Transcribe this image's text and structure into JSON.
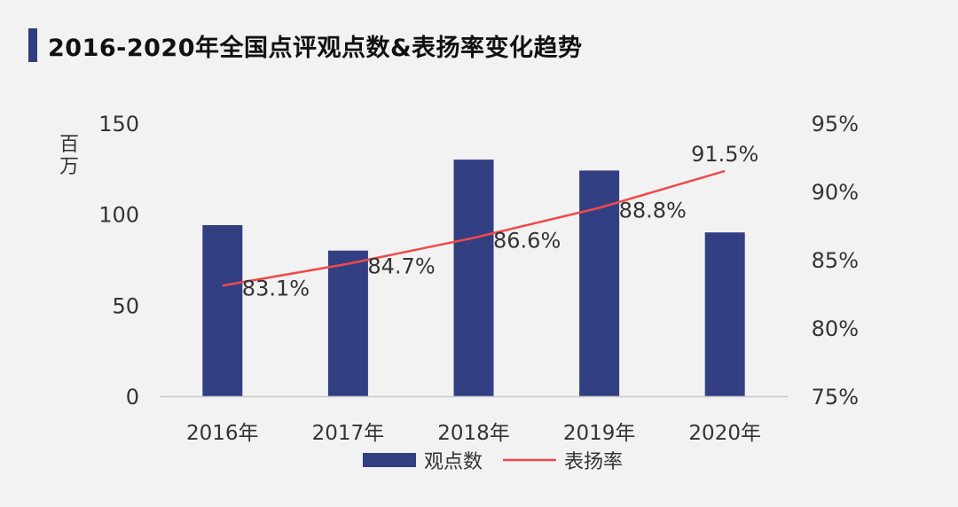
{
  "title": "2016-2020年全国点评观点数&表扬率变化趋势",
  "colors": {
    "accent": "#2f3d7e",
    "bar": "#323f82",
    "line": "#ef4a4a",
    "axis": "#c9c9c9",
    "text": "#333333"
  },
  "chart_data": {
    "type": "bar+line",
    "title": "2016-2020年全国点评观点数&表扬率变化趋势",
    "categories": [
      "2016年",
      "2017年",
      "2018年",
      "2019年",
      "2020年"
    ],
    "left_axis": {
      "unit": "百万",
      "min": 0,
      "max": 150,
      "ticks": [
        "0",
        "50",
        "100",
        "150"
      ],
      "tick_values": [
        0,
        50,
        100,
        150
      ]
    },
    "right_axis": {
      "min": 75,
      "max": 95,
      "ticks": [
        "75%",
        "80%",
        "85%",
        "90%",
        "95%"
      ],
      "tick_values": [
        75,
        80,
        85,
        90,
        95
      ]
    },
    "series": [
      {
        "name": "观点数",
        "kind": "bar",
        "axis": "left",
        "values": [
          94,
          80,
          130,
          124,
          90
        ]
      },
      {
        "name": "表扬率",
        "kind": "line",
        "axis": "right",
        "values": [
          83.1,
          84.7,
          86.6,
          88.8,
          91.5
        ],
        "labels": [
          "83.1%",
          "84.7%",
          "86.6%",
          "88.8%",
          "91.5%"
        ]
      }
    ],
    "legend": [
      "观点数",
      "表扬率"
    ],
    "legend_position": "bottom-center",
    "grid": false
  }
}
